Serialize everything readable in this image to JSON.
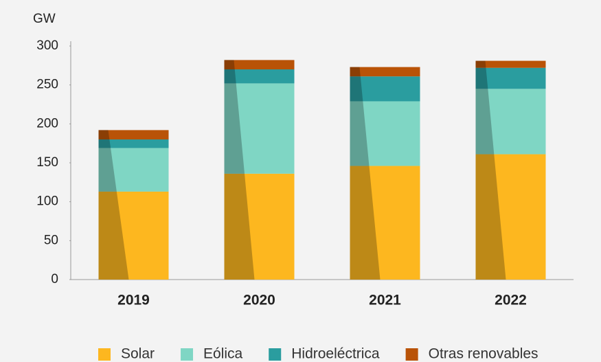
{
  "chart_data": {
    "type": "stacked_bar",
    "y_axis_label": "GW",
    "categories": [
      "2019",
      "2020",
      "2021",
      "2022"
    ],
    "series": [
      {
        "name": "Solar",
        "color": "#fdb71f",
        "values": [
          113,
          136,
          146,
          161
        ]
      },
      {
        "name": "Eólica",
        "color": "#7fd6c4",
        "values": [
          56,
          116,
          83,
          84
        ]
      },
      {
        "name": "Hidroeléctrica",
        "color": "#2a9d9f",
        "values": [
          11,
          18,
          32,
          27
        ]
      },
      {
        "name": "Otras renovables",
        "color": "#b95307",
        "values": [
          12,
          12,
          12,
          9
        ]
      }
    ],
    "ylim": [
      0,
      300
    ],
    "yticks": [
      0,
      50,
      100,
      150,
      200,
      250,
      300
    ],
    "grid": false,
    "legend": "bottom"
  }
}
